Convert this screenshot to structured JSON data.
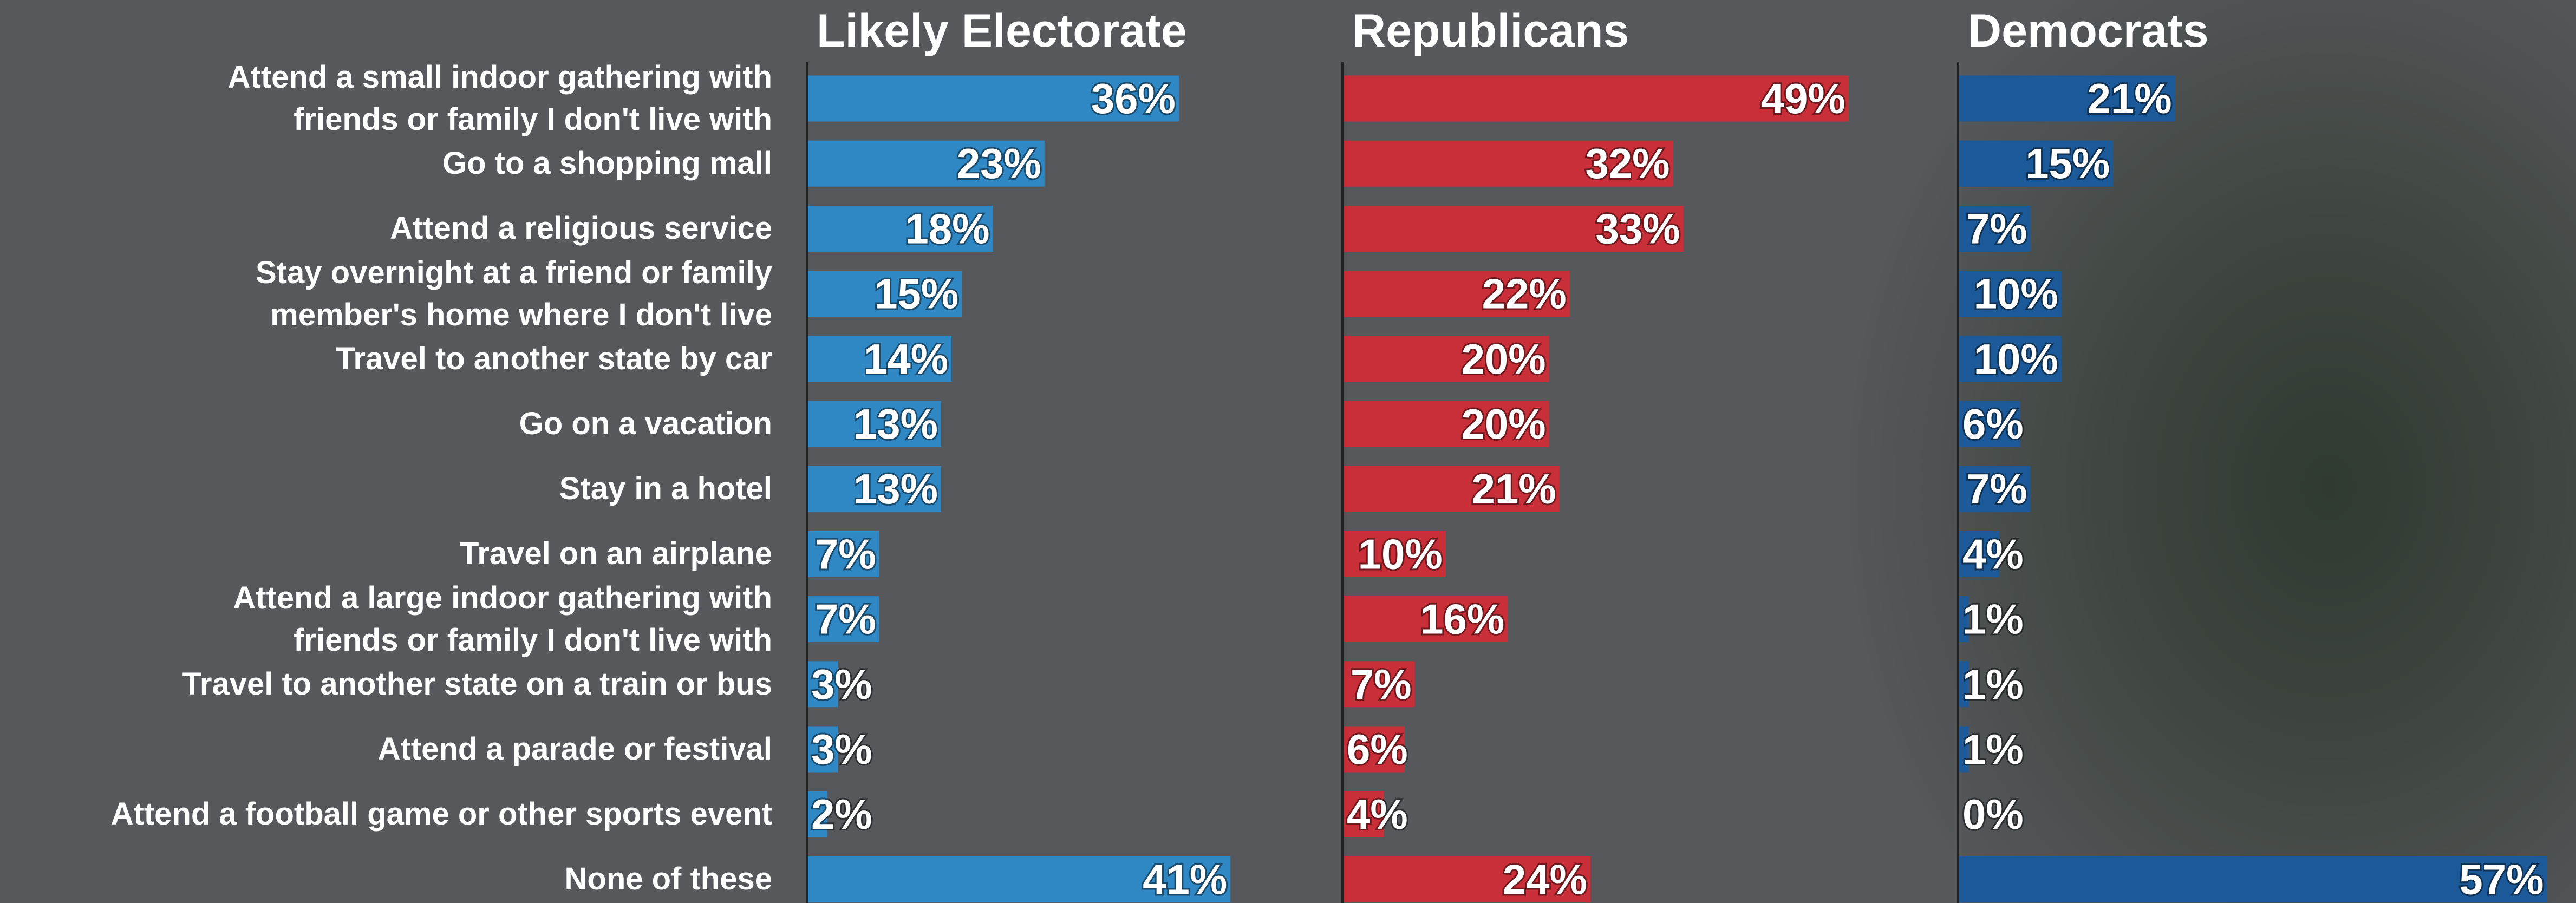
{
  "chart_data": [
    {
      "type": "bar",
      "orientation": "horizontal",
      "title": "Likely Electorate",
      "color": "#2f87c3",
      "categories": [
        "Attend a small indoor gathering with\nfriends or family I don't live with",
        "Go to a shopping mall",
        "Attend a religious service",
        "Stay overnight at a friend or family\nmember's home where I don't live",
        "Travel to another state by car",
        "Go on a vacation",
        "Stay in a hotel",
        "Travel on an airplane",
        "Attend a large indoor gathering with\nfriends or family I don't live with",
        "Travel to another state on a train or bus",
        "Attend a parade or festival",
        "Attend a football game or other sports event",
        "None of these"
      ],
      "values": [
        36,
        23,
        18,
        15,
        14,
        13,
        13,
        7,
        7,
        3,
        3,
        2,
        41
      ],
      "value_labels": [
        "36%",
        "23%",
        "18%",
        "15%",
        "14%",
        "13%",
        "13%",
        "7%",
        "7%",
        "3%",
        "3%",
        "2%",
        "41%"
      ]
    },
    {
      "type": "bar",
      "orientation": "horizontal",
      "title": "Republicans",
      "color": "#c92f38",
      "values": [
        49,
        32,
        33,
        22,
        20,
        20,
        21,
        10,
        16,
        7,
        6,
        4,
        24
      ],
      "value_labels": [
        "49%",
        "32%",
        "33%",
        "22%",
        "20%",
        "20%",
        "21%",
        "10%",
        "16%",
        "7%",
        "6%",
        "4%",
        "24%"
      ]
    },
    {
      "type": "bar",
      "orientation": "horizontal",
      "title": "Democrats",
      "color": "#1c5998",
      "values": [
        21,
        15,
        7,
        10,
        10,
        6,
        7,
        4,
        1,
        1,
        1,
        0,
        57
      ],
      "value_labels": [
        "21%",
        "15%",
        "7%",
        "10%",
        "10%",
        "6%",
        "7%",
        "4%",
        "1%",
        "1%",
        "1%",
        "0%",
        "57%"
      ]
    }
  ]
}
